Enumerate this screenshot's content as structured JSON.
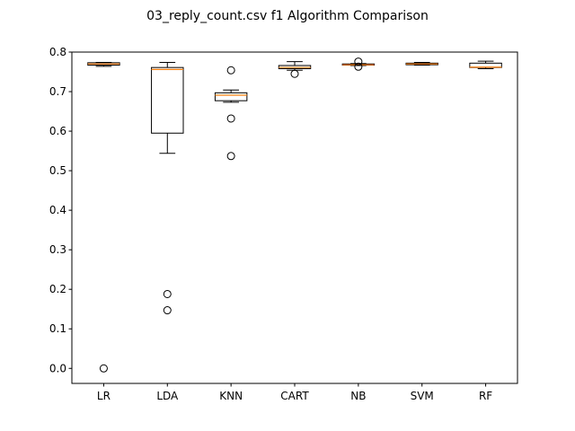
{
  "chart_data": {
    "type": "box",
    "title": "03_reply_count.csv f1 Algorithm Comparison",
    "xlabel": "",
    "ylabel": "",
    "ylim": [
      -0.038,
      0.8
    ],
    "yticks": [
      0.0,
      0.1,
      0.2,
      0.3,
      0.4,
      0.5,
      0.6,
      0.7,
      0.8
    ],
    "ytick_labels": [
      "0.0",
      "0.1",
      "0.2",
      "0.3",
      "0.4",
      "0.5",
      "0.6",
      "0.7",
      "0.8"
    ],
    "grid": false,
    "legend": "none",
    "colors": {
      "median": "#ff7f0e",
      "box": "#000000"
    },
    "series": [
      {
        "name": "LR",
        "whisker_low": 0.764,
        "q1": 0.767,
        "median": 0.77,
        "q3": 0.773,
        "whisker_high": 0.774,
        "outliers": [
          0.0
        ]
      },
      {
        "name": "LDA",
        "whisker_low": 0.544,
        "q1": 0.595,
        "median": 0.756,
        "q3": 0.761,
        "whisker_high": 0.774,
        "outliers": [
          0.188,
          0.147
        ]
      },
      {
        "name": "KNN",
        "whisker_low": 0.673,
        "q1": 0.677,
        "median": 0.691,
        "q3": 0.697,
        "whisker_high": 0.704,
        "outliers": [
          0.754,
          0.632,
          0.537
        ]
      },
      {
        "name": "CART",
        "whisker_low": 0.754,
        "q1": 0.758,
        "median": 0.761,
        "q3": 0.766,
        "whisker_high": 0.776,
        "outliers": [
          0.745
        ]
      },
      {
        "name": "NB",
        "whisker_low": 0.766,
        "q1": 0.767,
        "median": 0.768,
        "q3": 0.77,
        "whisker_high": 0.771,
        "outliers": [
          0.776,
          0.763
        ]
      },
      {
        "name": "SVM",
        "whisker_low": 0.767,
        "q1": 0.768,
        "median": 0.77,
        "q3": 0.772,
        "whisker_high": 0.774,
        "outliers": []
      },
      {
        "name": "RF",
        "whisker_low": 0.758,
        "q1": 0.761,
        "median": 0.762,
        "q3": 0.772,
        "whisker_high": 0.777,
        "outliers": []
      }
    ]
  }
}
